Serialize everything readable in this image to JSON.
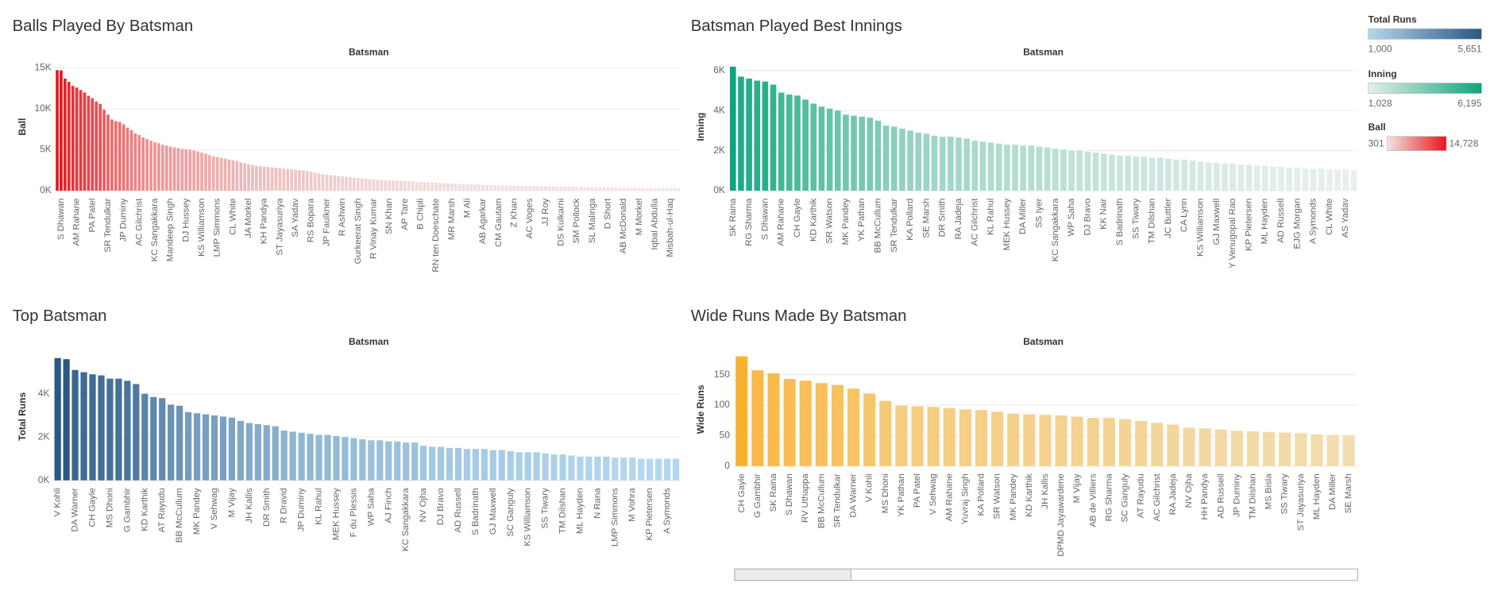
{
  "chart_data": [
    {
      "type": "bar",
      "title": "Balls Played By Batsman",
      "x_label": "Batsman",
      "y_label": "Ball",
      "colors": [
        "#f1e4e4",
        "#e6151b"
      ],
      "legend": {
        "title": "Ball",
        "range": [
          {
            "value": 301,
            "label": "301"
          },
          {
            "value": 14728,
            "label": "14,728"
          }
        ]
      },
      "ylim": [
        0,
        15600
      ],
      "yticks": [
        {
          "value": 0,
          "label": "0K"
        },
        {
          "value": 5000,
          "label": "5K"
        },
        {
          "value": 10000,
          "label": "10K"
        },
        {
          "value": 15000,
          "label": "15K"
        }
      ],
      "grid": true,
      "categories": [
        null,
        "S Dhawan",
        null,
        null,
        null,
        "AM Rahane",
        null,
        null,
        null,
        "PA Patel",
        null,
        null,
        null,
        "SR Tendulkar",
        null,
        null,
        null,
        "JP Duminy",
        null,
        null,
        null,
        "AC Gilchrist",
        null,
        null,
        null,
        "KC Sangakkara",
        null,
        null,
        null,
        "Mandeep Singh",
        null,
        null,
        null,
        "DJ Hussey",
        null,
        null,
        null,
        "KS Williamson",
        null,
        null,
        null,
        "LMP Simmons",
        null,
        null,
        null,
        "CL White",
        null,
        null,
        null,
        "JA Morkel",
        null,
        null,
        null,
        "KH Pandya",
        null,
        null,
        null,
        "ST Jayasuriya",
        null,
        null,
        null,
        "SA Yadav",
        null,
        null,
        null,
        "RS Bopara",
        null,
        null,
        null,
        "JP Faulkner",
        null,
        null,
        null,
        "R Ashwin",
        null,
        null,
        null,
        "Gurkeerat Singh",
        null,
        null,
        null,
        "R Vinay Kumar",
        null,
        null,
        null,
        "SN Khan",
        null,
        null,
        null,
        "AP Tare",
        null,
        null,
        null,
        "B Chipli",
        null,
        null,
        null,
        "RN ten Doeschate",
        null,
        null,
        null,
        "MR Marsh",
        null,
        null,
        null,
        "M Ali",
        null,
        null,
        null,
        "AB Agarkar",
        null,
        null,
        null,
        "CM Gautam",
        null,
        null,
        null,
        "Z Khan",
        null,
        null,
        null,
        "AC Voges",
        null,
        null,
        null,
        "JJ Roy",
        null,
        null,
        null,
        "DS Kulkarni",
        null,
        null,
        null,
        "SM Pollock",
        null,
        null,
        null,
        "SL Malinga",
        null,
        null,
        null,
        "D Short",
        null,
        null,
        null,
        "AB McDonald",
        null,
        null,
        null,
        "M Morkel",
        null,
        null,
        null,
        "Iqbal Abdulla",
        null,
        null,
        null,
        "Misbah-ul-Haq",
        null,
        null
      ],
      "values": [
        14728,
        14700,
        13700,
        13300,
        12800,
        12600,
        12300,
        12000,
        11600,
        11300,
        10900,
        10600,
        9900,
        9300,
        8700,
        8500,
        8400,
        8100,
        7700,
        7400,
        7000,
        6800,
        6500,
        6300,
        6100,
        5900,
        5800,
        5600,
        5500,
        5400,
        5300,
        5200,
        5100,
        5050,
        5000,
        4900,
        4800,
        4650,
        4500,
        4350,
        4200,
        4100,
        4000,
        3900,
        3800,
        3700,
        3600,
        3450,
        3350,
        3250,
        3150,
        3050,
        3000,
        2950,
        2900,
        2850,
        2800,
        2750,
        2700,
        2650,
        2600,
        2550,
        2500,
        2450,
        2400,
        2300,
        2200,
        2100,
        2000,
        1950,
        1900,
        1850,
        1800,
        1750,
        1700,
        1650,
        1600,
        1550,
        1500,
        1450,
        1400,
        1380,
        1350,
        1320,
        1300,
        1280,
        1250,
        1220,
        1200,
        1180,
        1150,
        1120,
        1100,
        1080,
        1050,
        1020,
        1000,
        980,
        950,
        920,
        900,
        880,
        860,
        840,
        820,
        800,
        780,
        760,
        740,
        720,
        700,
        690,
        680,
        670,
        660,
        650,
        640,
        630,
        620,
        610,
        600,
        590,
        580,
        570,
        560,
        550,
        540,
        530,
        520,
        510,
        500,
        490,
        480,
        470,
        460,
        450,
        440,
        430,
        420,
        410,
        400,
        395,
        390,
        385,
        380,
        375,
        370,
        365,
        360,
        355,
        350,
        345,
        340,
        335,
        330,
        325,
        320,
        315,
        310,
        301
      ]
    },
    {
      "type": "bar",
      "title": "Batsman Played Best Innings",
      "x_label": "Batsman",
      "y_label": "Inning",
      "colors": [
        "#e8efec",
        "#0ea47c"
      ],
      "legend": {
        "title": "Inning",
        "range": [
          {
            "value": 1028,
            "label": "1,028"
          },
          {
            "value": 6195,
            "label": "6,195"
          }
        ]
      },
      "ylim": [
        0,
        6380
      ],
      "yticks": [
        {
          "value": 0,
          "label": "0K"
        },
        {
          "value": 2000,
          "label": "2K"
        },
        {
          "value": 4000,
          "label": "4K"
        },
        {
          "value": 6000,
          "label": "6K"
        }
      ],
      "grid": true,
      "categories": [
        "SK Raina",
        null,
        "RG Sharma",
        null,
        "S Dhawan",
        null,
        "AM Rahane",
        null,
        "CH Gayle",
        null,
        "KD Karthik",
        null,
        "SR Watson",
        null,
        "MK Pandey",
        null,
        "YK Pathan",
        null,
        "BB McCullum",
        null,
        "SR Tendulkar",
        null,
        "KA Pollard",
        null,
        "SE Marsh",
        null,
        "DR Smith",
        null,
        "RA Jadeja",
        null,
        "AC Gilchrist",
        null,
        "KL Rahul",
        null,
        "MEK Hussey",
        null,
        "DA Miller",
        null,
        "SS Iyer",
        null,
        "KC Sangakkara",
        null,
        "WP Saha",
        null,
        "DJ Bravo",
        null,
        "KK Nair",
        null,
        "S Badrinath",
        null,
        "SS Tiwary",
        null,
        "TM Dilshan",
        null,
        "JC Buttler",
        null,
        "CA Lynn",
        null,
        "KS Williamson",
        null,
        "GJ Maxwell",
        null,
        "Y Venugopal Rao",
        null,
        "KP Pietersen",
        null,
        "ML Hayden",
        null,
        "AD Russell",
        null,
        "EJG Morgan",
        null,
        "A Symonds",
        null,
        "CL White",
        null,
        "AS Yadav",
        null
      ],
      "values": [
        6195,
        5700,
        5600,
        5500,
        5450,
        5300,
        4900,
        4800,
        4750,
        4550,
        4350,
        4200,
        4100,
        4000,
        3800,
        3750,
        3700,
        3650,
        3500,
        3250,
        3200,
        3100,
        3000,
        2900,
        2850,
        2750,
        2700,
        2700,
        2650,
        2600,
        2500,
        2450,
        2400,
        2350,
        2300,
        2300,
        2250,
        2250,
        2200,
        2150,
        2100,
        2050,
        2000,
        2000,
        1950,
        1900,
        1850,
        1800,
        1750,
        1750,
        1700,
        1700,
        1650,
        1650,
        1600,
        1550,
        1550,
        1500,
        1450,
        1400,
        1400,
        1350,
        1350,
        1300,
        1300,
        1250,
        1250,
        1200,
        1200,
        1150,
        1150,
        1100,
        1100,
        1100,
        1050,
        1050,
        1050,
        1028
      ]
    },
    {
      "type": "bar",
      "title": "Top Batsman",
      "x_label": "Batsman",
      "y_label": "Total Runs",
      "colors": [
        "#b4d7ee",
        "#2a5783"
      ],
      "legend": {
        "title": "Total Runs",
        "range": [
          {
            "value": 1000,
            "label": "1,000"
          },
          {
            "value": 5651,
            "label": "5,651"
          }
        ]
      },
      "ylim": [
        0,
        5900
      ],
      "yticks": [
        {
          "value": 0,
          "label": "0K"
        },
        {
          "value": 2000,
          "label": "2K"
        },
        {
          "value": 4000,
          "label": "4K"
        }
      ],
      "grid": true,
      "categories": [
        "V Kohli",
        null,
        "DA Warner",
        null,
        "CH Gayle",
        null,
        "MS Dhoni",
        null,
        "G Gambhir",
        null,
        "KD Karthik",
        null,
        "AT Rayudu",
        null,
        "BB McCullum",
        null,
        "MK Pandey",
        null,
        "V Sehwag",
        null,
        "M Vijay",
        null,
        "JH Kallis",
        null,
        "DR Smith",
        null,
        "R Dravid",
        null,
        "JP Duminy",
        null,
        "KL Rahul",
        null,
        "MEK Hussey",
        null,
        "F du Plessis",
        null,
        "WP Saha",
        null,
        "AJ Finch",
        null,
        "KC Sangakkara",
        null,
        "NV Ojha",
        null,
        "DJ Bravo",
        null,
        "AD Russell",
        null,
        "S Badrinath",
        null,
        "GJ Maxwell",
        null,
        "SC Ganguly",
        null,
        "KS Williamson",
        null,
        "SS Tiwary",
        null,
        "TM Dilshan",
        null,
        "ML Hayden",
        null,
        "N Rana",
        null,
        "LMP Simmons",
        null,
        "M Vohra",
        null,
        "KP Pietersen",
        null,
        "A Symonds",
        null
      ],
      "values": [
        5651,
        5600,
        5100,
        5000,
        4900,
        4850,
        4700,
        4700,
        4600,
        4450,
        4000,
        3850,
        3800,
        3500,
        3450,
        3150,
        3100,
        3050,
        3000,
        2950,
        2900,
        2750,
        2650,
        2600,
        2550,
        2500,
        2300,
        2250,
        2200,
        2150,
        2100,
        2100,
        2050,
        2000,
        1950,
        1900,
        1850,
        1850,
        1800,
        1800,
        1750,
        1750,
        1600,
        1550,
        1550,
        1500,
        1500,
        1450,
        1450,
        1450,
        1400,
        1400,
        1350,
        1300,
        1300,
        1300,
        1250,
        1200,
        1200,
        1150,
        1100,
        1100,
        1100,
        1100,
        1050,
        1050,
        1050,
        1000,
        1000,
        1000,
        1000,
        1000
      ]
    },
    {
      "type": "bar",
      "title": "Wide Runs Made By Batsman",
      "x_label": "Batsman",
      "y_label": "Wide Runs",
      "colors": [
        "#f3dcae",
        "#fbb130"
      ],
      "ylim": [
        0,
        186
      ],
      "yticks": [
        0,
        50,
        100,
        150
      ],
      "grid": true,
      "categories": [
        "CH Gayle",
        "G Gambhir",
        "SK Raina",
        "S Dhawan",
        "RV Uthappa",
        "BB McCullum",
        "SR Tendulkar",
        "DA Warner",
        "V Kohli",
        "MS Dhoni",
        "YK Pathan",
        "PA Patel",
        "V Sehwag",
        "AM Rahane",
        "Yuvraj Singh",
        "KA Pollard",
        "SR Watson",
        "MK Pandey",
        "KD Karthik",
        "JH Kallis",
        "DPMD Jayawardene",
        "M Vijay",
        "AB de Villiers",
        "RG Sharma",
        "SC Ganguly",
        "AT Rayudu",
        "AC Gilchrist",
        "RA Jadeja",
        "NV Ojha",
        "HH Pandya",
        "AD Russell",
        "JP Duminy",
        "TM Dilshan",
        "MS Bisla",
        "SS Tiwary",
        "ST Jayasuriya",
        "ML Hayden",
        "DA Miller",
        "SE Marsh"
      ],
      "values": [
        180,
        157,
        152,
        143,
        140,
        136,
        133,
        127,
        119,
        107,
        99,
        98,
        97,
        95,
        93,
        92,
        89,
        86,
        85,
        84,
        83,
        81,
        79,
        79,
        77,
        74,
        71,
        68,
        63,
        62,
        60,
        58,
        57,
        56,
        55,
        54,
        52,
        51,
        50
      ]
    }
  ]
}
